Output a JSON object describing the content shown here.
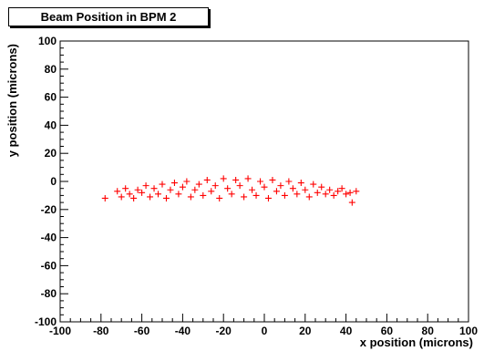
{
  "chart_data": {
    "type": "scatter",
    "title": "Beam Position in BPM 2",
    "xlabel": "x position (microns)",
    "ylabel": "y position (microns)",
    "xlim": [
      -100,
      100
    ],
    "ylim": [
      -100,
      100
    ],
    "xticks": [
      -100,
      -80,
      -60,
      -40,
      -20,
      0,
      20,
      40,
      60,
      80,
      100
    ],
    "yticks": [
      -100,
      -80,
      -60,
      -40,
      -20,
      0,
      20,
      40,
      60,
      80,
      100
    ],
    "marker": "+",
    "color": "#ff0000",
    "grid": false,
    "points": [
      [
        -78,
        -12
      ],
      [
        -72,
        -7
      ],
      [
        -70,
        -11
      ],
      [
        -68,
        -5
      ],
      [
        -66,
        -9
      ],
      [
        -64,
        -12
      ],
      [
        -62,
        -6
      ],
      [
        -60,
        -8
      ],
      [
        -58,
        -3
      ],
      [
        -56,
        -11
      ],
      [
        -54,
        -5
      ],
      [
        -52,
        -9
      ],
      [
        -50,
        -2
      ],
      [
        -48,
        -12
      ],
      [
        -46,
        -6
      ],
      [
        -44,
        -1
      ],
      [
        -42,
        -9
      ],
      [
        -40,
        -4
      ],
      [
        -38,
        0
      ],
      [
        -36,
        -11
      ],
      [
        -34,
        -6
      ],
      [
        -32,
        -2
      ],
      [
        -30,
        -10
      ],
      [
        -28,
        1
      ],
      [
        -26,
        -7
      ],
      [
        -24,
        -3
      ],
      [
        -22,
        -12
      ],
      [
        -20,
        2
      ],
      [
        -18,
        -5
      ],
      [
        -16,
        -9
      ],
      [
        -14,
        1
      ],
      [
        -12,
        -3
      ],
      [
        -10,
        -11
      ],
      [
        -8,
        2
      ],
      [
        -6,
        -6
      ],
      [
        -4,
        -10
      ],
      [
        -2,
        0
      ],
      [
        0,
        -4
      ],
      [
        2,
        -12
      ],
      [
        4,
        1
      ],
      [
        6,
        -7
      ],
      [
        8,
        -3
      ],
      [
        10,
        -10
      ],
      [
        12,
        0
      ],
      [
        14,
        -5
      ],
      [
        16,
        -9
      ],
      [
        18,
        -1
      ],
      [
        20,
        -6
      ],
      [
        22,
        -11
      ],
      [
        24,
        -2
      ],
      [
        26,
        -8
      ],
      [
        28,
        -4
      ],
      [
        30,
        -9
      ],
      [
        32,
        -6
      ],
      [
        34,
        -10
      ],
      [
        36,
        -7
      ],
      [
        38,
        -5
      ],
      [
        40,
        -9
      ],
      [
        42,
        -8
      ],
      [
        43,
        -15
      ],
      [
        45,
        -7
      ]
    ]
  }
}
